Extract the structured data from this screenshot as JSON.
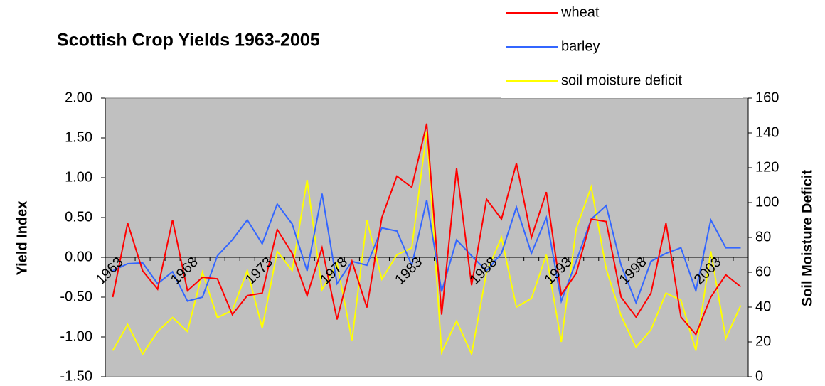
{
  "chart_data": {
    "type": "line",
    "title": "Scottish Crop Yields 1963-2005",
    "y_label": "Yield Index",
    "y2_label": "Soil Moisture Deficit",
    "categories": [
      "1963",
      null,
      null,
      null,
      null,
      "1968",
      null,
      null,
      null,
      null,
      "1973",
      null,
      null,
      null,
      null,
      "1978",
      null,
      null,
      null,
      null,
      "1983",
      null,
      null,
      null,
      null,
      "1988",
      null,
      null,
      null,
      null,
      "1993",
      null,
      null,
      null,
      null,
      "1998",
      null,
      null,
      null,
      null,
      "2003",
      null,
      null
    ],
    "series": [
      {
        "name": "wheat",
        "color": "#ff0000",
        "values": [
          -0.5,
          0.43,
          -0.17,
          -0.4,
          0.47,
          -0.42,
          -0.25,
          -0.27,
          -0.72,
          -0.48,
          -0.45,
          0.35,
          0.05,
          -0.48,
          0.12,
          -0.78,
          -0.05,
          -0.63,
          0.5,
          1.02,
          0.88,
          1.68,
          -0.72,
          1.12,
          -0.35,
          0.73,
          0.48,
          1.18,
          0.25,
          0.82,
          -0.47,
          -0.2,
          0.48,
          0.45,
          -0.5,
          -0.75,
          -0.45,
          0.43,
          -0.75,
          -0.97,
          -0.5,
          -0.22,
          -0.37
        ]
      },
      {
        "name": "barley",
        "color": "#3366ff",
        "values": [
          -0.17,
          -0.08,
          -0.07,
          -0.33,
          -0.18,
          -0.55,
          -0.5,
          0.02,
          0.22,
          0.47,
          0.17,
          0.67,
          0.42,
          -0.17,
          0.8,
          -0.33,
          -0.05,
          -0.1,
          0.37,
          0.33,
          -0.1,
          0.72,
          -0.43,
          0.22,
          0.02,
          -0.17,
          0.05,
          0.63,
          0.05,
          0.5,
          -0.55,
          -0.05,
          0.48,
          0.65,
          -0.1,
          -0.57,
          -0.05,
          0.05,
          0.12,
          -0.42,
          0.47,
          0.12,
          0.12
        ]
      },
      {
        "name": "soil moisture deficit",
        "color": "#ffff00",
        "axis": "y2",
        "values": [
          15,
          30,
          13,
          26,
          34,
          26,
          60,
          34,
          38,
          61,
          28,
          72,
          61,
          113,
          50,
          65,
          21,
          90,
          56,
          70,
          74,
          141,
          14,
          32,
          13,
          60,
          80,
          40,
          45,
          70,
          20,
          85,
          109,
          62,
          35,
          17,
          27,
          48,
          44,
          15,
          72,
          22,
          41
        ]
      }
    ],
    "ylim": [
      -1.5,
      2.0
    ],
    "yticks": [
      {
        "value": -1.5,
        "label": "-1.50"
      },
      {
        "value": -1.0,
        "label": "-1.00"
      },
      {
        "value": -0.5,
        "label": "-0.50"
      },
      {
        "value": 0,
        "label": "0.00"
      },
      {
        "value": 0.5,
        "label": "0.50"
      },
      {
        "value": 1.0,
        "label": "1.00"
      },
      {
        "value": 1.5,
        "label": "1.50"
      },
      {
        "value": 2.0,
        "label": "2.00"
      }
    ],
    "y2lim": [
      0,
      160
    ],
    "y2ticks": [
      0,
      20,
      40,
      60,
      80,
      100,
      120,
      140,
      160
    ],
    "plot_background": "#c0c0c0",
    "legend": "top-right",
    "grid": false
  }
}
